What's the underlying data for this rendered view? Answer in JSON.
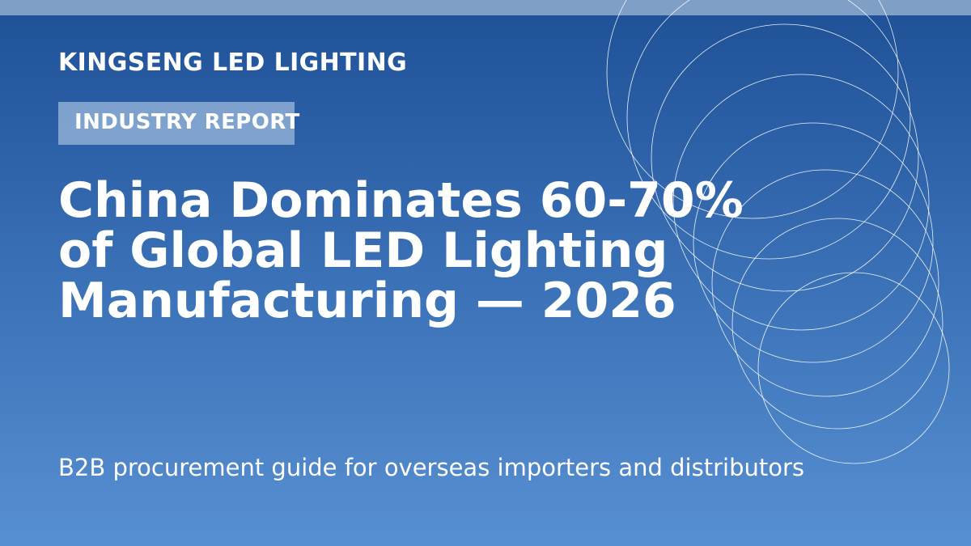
{
  "brand": "KINGSENG LED LIGHTING",
  "tag": "INDUSTRY REPORT",
  "headline": [
    "China Dominates 60-70%",
    "of Global LED Lighting",
    "Manufacturing — 2026"
  ],
  "subtitle": "B2B procurement guide for overseas importers and distributors",
  "decoration": "concentric-rings-icon",
  "colors": {
    "background_top": "#1e5096",
    "background_bottom": "#5790d2",
    "strip": "#809fc6",
    "tag_fill": "#a0bcde",
    "text": "#ffffff"
  }
}
